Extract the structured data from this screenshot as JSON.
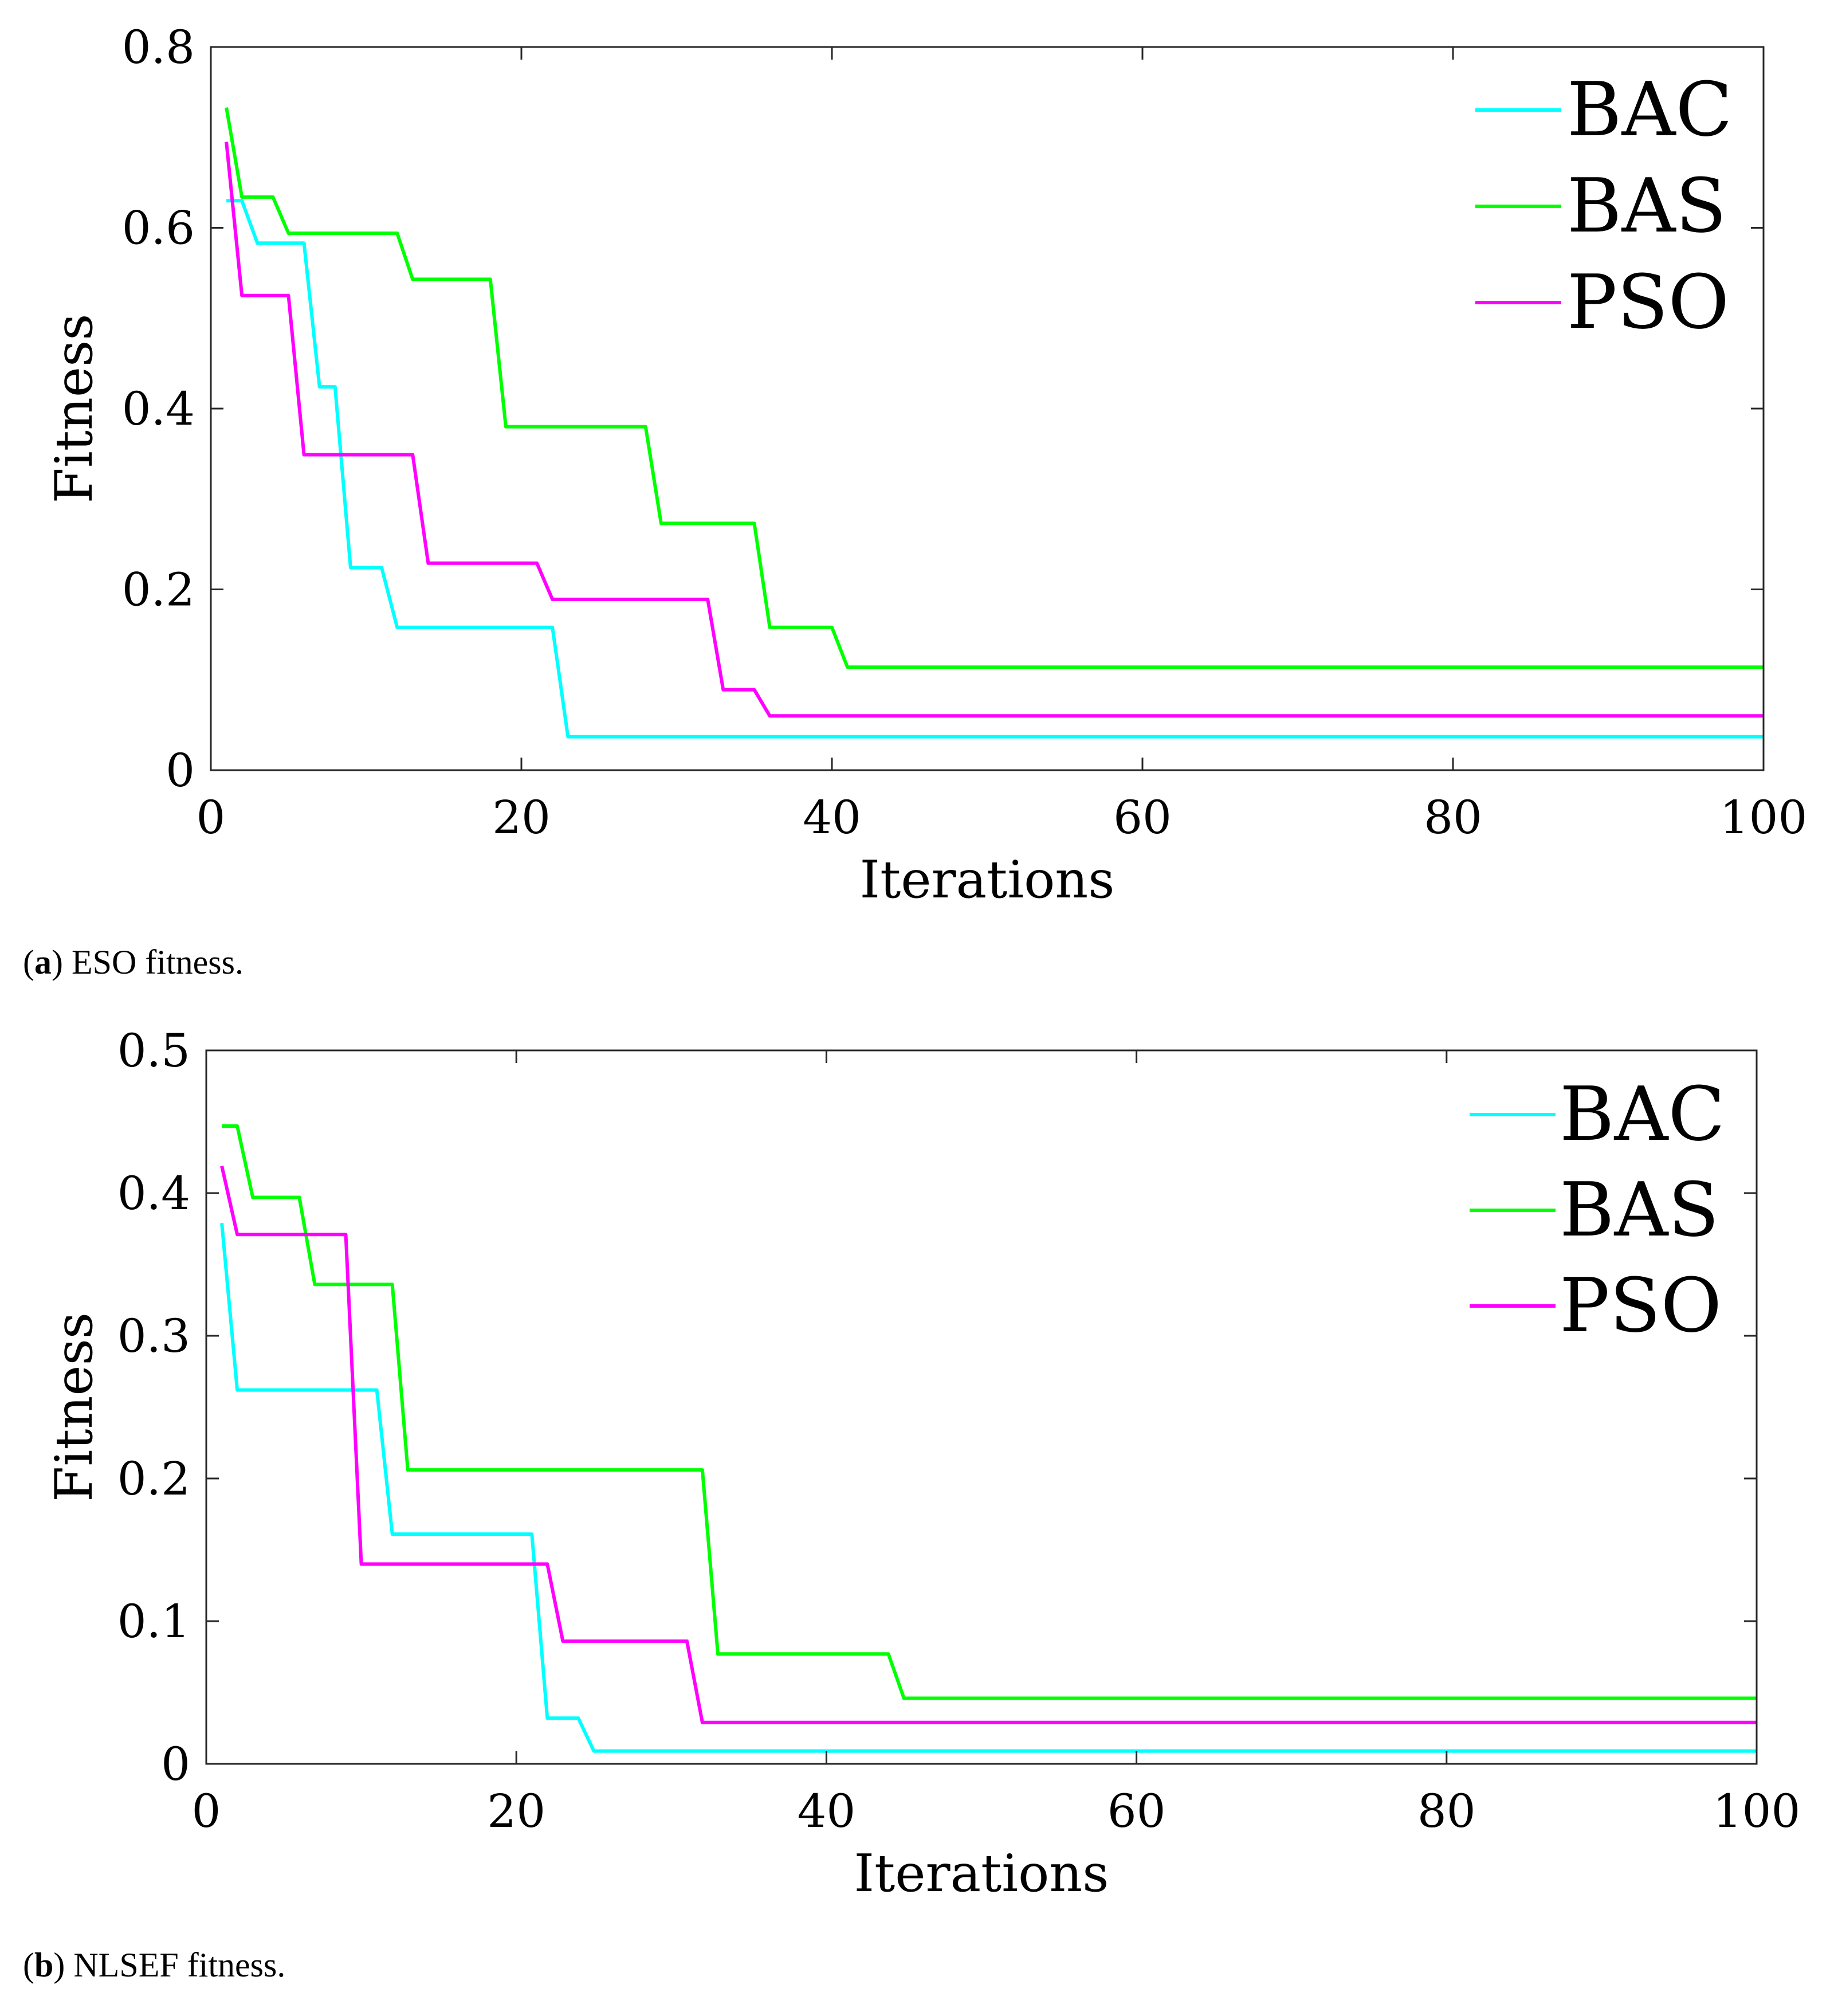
{
  "chart_data": [
    {
      "type": "line",
      "panel_id": "a",
      "caption_letter": "a",
      "caption_text": "ESO fitness.",
      "xlabel": "Iterations",
      "ylabel": "Fitness",
      "xlim": [
        0,
        100
      ],
      "ylim": [
        0,
        0.8
      ],
      "xticks": [
        0,
        20,
        40,
        60,
        80,
        100
      ],
      "yticks": [
        0,
        0.2,
        0.4,
        0.6,
        0.8
      ],
      "ytick_labels": [
        "0",
        "0.2",
        "0.4",
        "0.6",
        "0.8"
      ],
      "legend_position": "top-right",
      "series": [
        {
          "name": "BAC",
          "color": "#00ffff",
          "points": [
            [
              1,
              0.63
            ],
            [
              2,
              0.63
            ],
            [
              3,
              0.583
            ],
            [
              6,
              0.583
            ],
            [
              7,
              0.424
            ],
            [
              8,
              0.424
            ],
            [
              9,
              0.224
            ],
            [
              11,
              0.224
            ],
            [
              12,
              0.158
            ],
            [
              22,
              0.158
            ],
            [
              23,
              0.037
            ],
            [
              100,
              0.037
            ]
          ]
        },
        {
          "name": "BAS",
          "color": "#00ff00",
          "points": [
            [
              1,
              0.733
            ],
            [
              2,
              0.634
            ],
            [
              4,
              0.634
            ],
            [
              5,
              0.594
            ],
            [
              12,
              0.594
            ],
            [
              13,
              0.543
            ],
            [
              18,
              0.543
            ],
            [
              19,
              0.38
            ],
            [
              28,
              0.38
            ],
            [
              29,
              0.273
            ],
            [
              35,
              0.273
            ],
            [
              36,
              0.158
            ],
            [
              40,
              0.158
            ],
            [
              41,
              0.114
            ],
            [
              100,
              0.114
            ]
          ]
        },
        {
          "name": "PSO",
          "color": "#ff00ff",
          "points": [
            [
              1,
              0.695
            ],
            [
              2,
              0.525
            ],
            [
              5,
              0.525
            ],
            [
              6,
              0.349
            ],
            [
              13,
              0.349
            ],
            [
              14,
              0.229
            ],
            [
              21,
              0.229
            ],
            [
              22,
              0.189
            ],
            [
              32,
              0.189
            ],
            [
              33,
              0.089
            ],
            [
              35,
              0.089
            ],
            [
              36,
              0.06
            ],
            [
              100,
              0.06
            ]
          ]
        }
      ]
    },
    {
      "type": "line",
      "panel_id": "b",
      "caption_letter": "b",
      "caption_text": "NLSEF fitness.",
      "xlabel": "Iterations",
      "ylabel": "Fitness",
      "xlim": [
        0,
        100
      ],
      "ylim": [
        0,
        0.5
      ],
      "xticks": [
        0,
        20,
        40,
        60,
        80,
        100
      ],
      "yticks": [
        0,
        0.1,
        0.2,
        0.3,
        0.4,
        0.5
      ],
      "ytick_labels": [
        "0",
        "0.1",
        "0.2",
        "0.3",
        "0.4",
        "0.5"
      ],
      "legend_position": "top-right",
      "series": [
        {
          "name": "BAC",
          "color": "#00ffff",
          "points": [
            [
              1,
              0.379
            ],
            [
              2,
              0.262
            ],
            [
              11,
              0.262
            ],
            [
              12,
              0.161
            ],
            [
              21,
              0.161
            ],
            [
              22,
              0.032
            ],
            [
              24,
              0.032
            ],
            [
              25,
              0.009
            ],
            [
              100,
              0.009
            ]
          ]
        },
        {
          "name": "BAS",
          "color": "#00ff00",
          "points": [
            [
              1,
              0.447
            ],
            [
              2,
              0.447
            ],
            [
              3,
              0.397
            ],
            [
              6,
              0.397
            ],
            [
              7,
              0.336
            ],
            [
              12,
              0.336
            ],
            [
              13,
              0.206
            ],
            [
              32,
              0.206
            ],
            [
              33,
              0.077
            ],
            [
              44,
              0.077
            ],
            [
              45,
              0.046
            ],
            [
              100,
              0.046
            ]
          ]
        },
        {
          "name": "PSO",
          "color": "#ff00ff",
          "points": [
            [
              1,
              0.419
            ],
            [
              2,
              0.371
            ],
            [
              9,
              0.371
            ],
            [
              10,
              0.14
            ],
            [
              22,
              0.14
            ],
            [
              23,
              0.086
            ],
            [
              31,
              0.086
            ],
            [
              32,
              0.029
            ],
            [
              100,
              0.029
            ]
          ]
        }
      ]
    }
  ]
}
